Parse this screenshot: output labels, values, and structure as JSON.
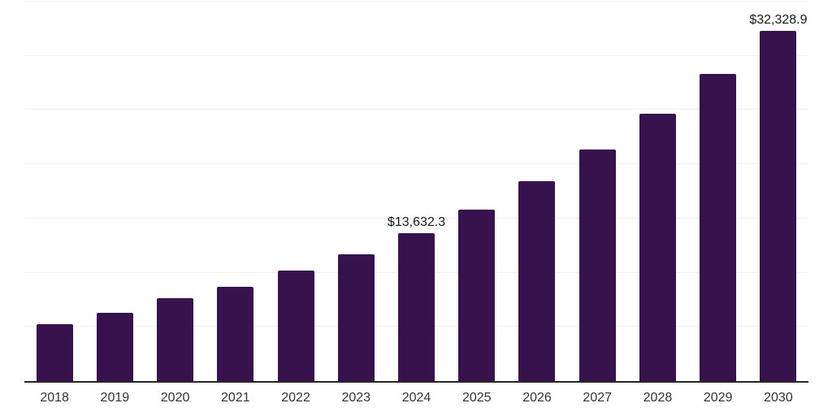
{
  "chart_data": {
    "type": "bar",
    "title": "",
    "xlabel": "",
    "ylabel": "",
    "categories": [
      "2018",
      "2019",
      "2020",
      "2021",
      "2022",
      "2023",
      "2024",
      "2025",
      "2026",
      "2027",
      "2028",
      "2029",
      "2030"
    ],
    "values": [
      5230,
      6280,
      7620,
      8670,
      10160,
      11660,
      13632.3,
      15850,
      18460,
      21370,
      24660,
      28320,
      32328.9
    ],
    "data_labels": [
      "",
      "",
      "",
      "",
      "",
      "",
      "$13,632.3",
      "",
      "",
      "",
      "",
      "",
      "$32,328.9"
    ],
    "ylim": [
      0,
      35000
    ],
    "gridline_step": 5000,
    "grid": "horizontal",
    "legend": "none",
    "y_axis_tick_labels_visible": false
  },
  "style": {
    "bar_color": "#38124d",
    "axis_line_color": "#262626",
    "gridline_color": "#f0f0f0",
    "tick_label_color": "#333333",
    "data_label_color": "#1a1a1a",
    "background_color": "#ffffff"
  }
}
